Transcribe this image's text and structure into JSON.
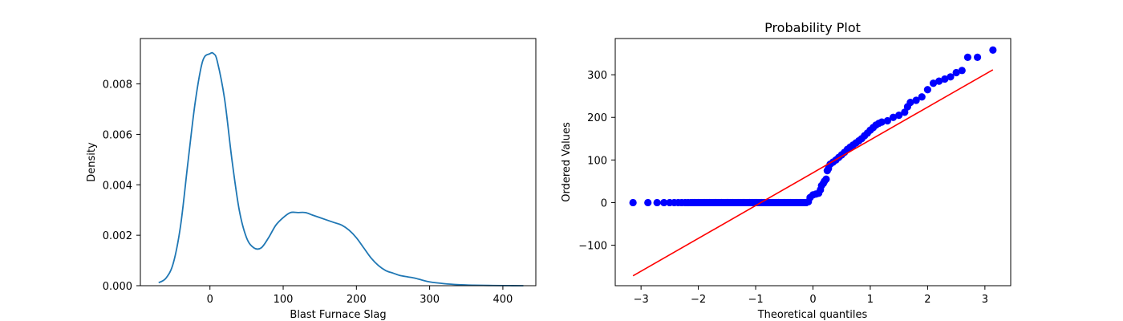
{
  "chart_data": [
    {
      "type": "line",
      "title": "",
      "xlabel": "Blast Furnace Slag",
      "ylabel": "Density",
      "xlim": [
        -95,
        445
      ],
      "ylim": [
        0,
        0.0098
      ],
      "xticks": [
        0,
        100,
        200,
        300,
        400
      ],
      "yticks": [
        0.0,
        0.002,
        0.004,
        0.006,
        0.008
      ],
      "ytick_labels": [
        "0.000",
        "0.002",
        "0.004",
        "0.006",
        "0.008"
      ],
      "grid": false,
      "color": "#1f77b4",
      "series": [
        {
          "x": [
            -70,
            -60,
            -50,
            -40,
            -30,
            -20,
            -10,
            0,
            5,
            10,
            20,
            30,
            40,
            50,
            60,
            70,
            80,
            90,
            100,
            110,
            120,
            130,
            140,
            150,
            160,
            170,
            180,
            190,
            200,
            210,
            220,
            230,
            240,
            250,
            260,
            270,
            280,
            290,
            300,
            320,
            340,
            360,
            380,
            400,
            428
          ],
          "y": [
            0.00012,
            0.0003,
            0.0009,
            0.0024,
            0.0049,
            0.0073,
            0.0089,
            0.0092,
            0.0092,
            0.0089,
            0.0074,
            0.005,
            0.003,
            0.0019,
            0.0015,
            0.0015,
            0.0019,
            0.0024,
            0.0027,
            0.0029,
            0.0029,
            0.0029,
            0.0028,
            0.0027,
            0.0026,
            0.0025,
            0.0024,
            0.0022,
            0.0019,
            0.0015,
            0.0011,
            0.0008,
            0.0006,
            0.0005,
            0.0004,
            0.00035,
            0.0003,
            0.00022,
            0.00015,
            8e-05,
            4e-05,
            2e-05,
            1e-05,
            5e-06,
            0.0
          ]
        }
      ]
    },
    {
      "type": "scatter",
      "title": "Probability Plot",
      "xlabel": "Theoretical quantiles",
      "ylabel": "Ordered Values",
      "xlim": [
        -3.45,
        3.45
      ],
      "ylim": [
        -195,
        385
      ],
      "xticks": [
        -3,
        -2,
        -1,
        0,
        1,
        2,
        3
      ],
      "xtick_labels": [
        "−3",
        "−2",
        "−1",
        "0",
        "1",
        "2",
        "3"
      ],
      "yticks": [
        -100,
        0,
        100,
        200,
        300
      ],
      "ytick_labels": [
        "−100",
        "0",
        "100",
        "200",
        "300"
      ],
      "grid": false,
      "point_color": "#0000ff",
      "line_color": "#ff0000",
      "fit_line": {
        "slope": 77.0,
        "intercept": 70.0
      },
      "points": [
        [
          -3.14,
          0
        ],
        [
          -2.88,
          0
        ],
        [
          -2.72,
          0
        ],
        [
          -2.6,
          0
        ],
        [
          -2.5,
          0
        ],
        [
          -2.42,
          0
        ],
        [
          -2.35,
          0
        ],
        [
          -2.29,
          0
        ],
        [
          -2.23,
          0
        ],
        [
          -2.18,
          0
        ],
        [
          -2.13,
          0
        ],
        [
          -2.08,
          0
        ],
        [
          -2.0,
          0
        ],
        [
          -1.9,
          0
        ],
        [
          -1.8,
          0
        ],
        [
          -1.7,
          0
        ],
        [
          -1.6,
          0
        ],
        [
          -1.5,
          0
        ],
        [
          -1.4,
          0
        ],
        [
          -1.3,
          0
        ],
        [
          -1.2,
          0
        ],
        [
          -1.1,
          0
        ],
        [
          -1.0,
          0
        ],
        [
          -0.9,
          0
        ],
        [
          -0.8,
          0
        ],
        [
          -0.7,
          0
        ],
        [
          -0.6,
          0
        ],
        [
          -0.5,
          0
        ],
        [
          -0.4,
          0
        ],
        [
          -0.3,
          0
        ],
        [
          -0.2,
          0
        ],
        [
          -0.12,
          0
        ],
        [
          -0.08,
          2
        ],
        [
          -0.05,
          12
        ],
        [
          0.0,
          18
        ],
        [
          0.05,
          20
        ],
        [
          0.1,
          22
        ],
        [
          0.13,
          30
        ],
        [
          0.15,
          40
        ],
        [
          0.18,
          45
        ],
        [
          0.2,
          50
        ],
        [
          0.23,
          55
        ],
        [
          0.25,
          75
        ],
        [
          0.27,
          80
        ],
        [
          0.3,
          90
        ],
        [
          0.35,
          95
        ],
        [
          0.4,
          100
        ],
        [
          0.45,
          106
        ],
        [
          0.5,
          112
        ],
        [
          0.55,
          118
        ],
        [
          0.6,
          125
        ],
        [
          0.65,
          130
        ],
        [
          0.7,
          135
        ],
        [
          0.75,
          140
        ],
        [
          0.8,
          145
        ],
        [
          0.85,
          150
        ],
        [
          0.9,
          157
        ],
        [
          0.95,
          163
        ],
        [
          1.0,
          170
        ],
        [
          1.05,
          176
        ],
        [
          1.1,
          182
        ],
        [
          1.15,
          186
        ],
        [
          1.2,
          189
        ],
        [
          1.3,
          192
        ],
        [
          1.4,
          200
        ],
        [
          1.5,
          205
        ],
        [
          1.6,
          212
        ],
        [
          1.65,
          225
        ],
        [
          1.7,
          235
        ],
        [
          1.8,
          240
        ],
        [
          1.9,
          248
        ],
        [
          2.0,
          265
        ],
        [
          2.1,
          280
        ],
        [
          2.2,
          285
        ],
        [
          2.3,
          290
        ],
        [
          2.4,
          295
        ],
        [
          2.5,
          305
        ],
        [
          2.6,
          310
        ],
        [
          2.7,
          341
        ],
        [
          2.87,
          341
        ],
        [
          3.14,
          358
        ]
      ]
    }
  ]
}
